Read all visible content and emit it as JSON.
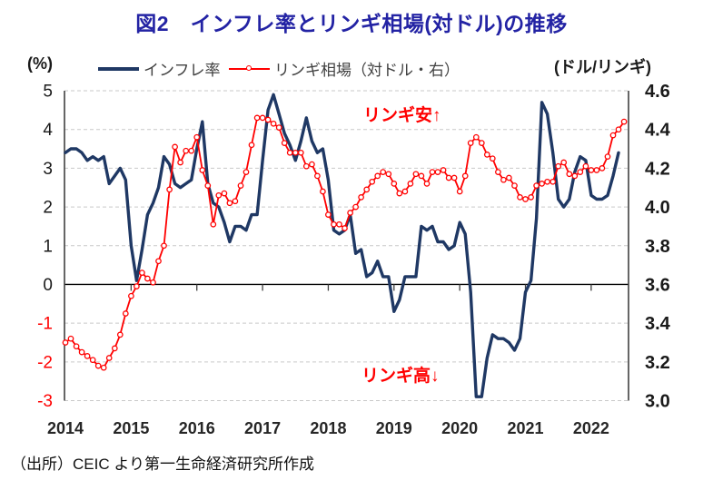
{
  "header": {
    "title": "図2　インフレ率とリンギ相場(対ドル)の推移",
    "title_color": "#2323a4"
  },
  "legend": {
    "left_unit": "(%)",
    "right_unit": "(ドル/リンギ)",
    "items": [
      {
        "label": "インフレ率",
        "color": "#1f3864",
        "marker": "line"
      },
      {
        "label": "リンギ相場（対ドル・右）",
        "color": "#ff0000",
        "marker": "line-circle"
      }
    ]
  },
  "annotations": [
    {
      "text": "リンギ安↑",
      "color": "#ff0000"
    },
    {
      "text": "リンギ高↓",
      "color": "#ff0000"
    }
  ],
  "footer": {
    "source": "（出所）CEIC より第一生命経済研究所作成"
  },
  "chart_data": {
    "type": "line",
    "title": "図2　インフレ率とリンギ相場(対ドル)の推移",
    "x_interval": "monthly",
    "x_start": "2014-01",
    "x_tick_years": [
      "2014",
      "2015",
      "2016",
      "2017",
      "2018",
      "2019",
      "2020",
      "2021",
      "2022"
    ],
    "grid": true,
    "legend_position": "top",
    "left_axis": {
      "unit": "(%)",
      "min": -3,
      "max": 5,
      "ticks": [
        5,
        4,
        3,
        2,
        1,
        0,
        -1,
        -2,
        -3
      ],
      "tick_color": "#1a1a1a",
      "negative_tick_color": "#ff0000"
    },
    "right_axis": {
      "unit": "(ドル/リンギ)",
      "min": 3.0,
      "max": 4.6,
      "ticks": [
        "4.6",
        "4.4",
        "4.2",
        "4.0",
        "3.8",
        "3.6",
        "3.4",
        "3.2",
        "3.0"
      ],
      "tick_color": "#1a1a1a"
    },
    "series": [
      {
        "name": "インフレ率",
        "axis": "left",
        "color": "#1f3864",
        "width": 3.4,
        "marker": "none",
        "values": [
          3.4,
          3.5,
          3.5,
          3.4,
          3.2,
          3.3,
          3.2,
          3.3,
          2.6,
          2.8,
          3.0,
          2.7,
          1.0,
          0.1,
          0.9,
          1.8,
          2.1,
          2.5,
          3.3,
          3.1,
          2.6,
          2.5,
          2.6,
          2.7,
          3.5,
          4.2,
          2.6,
          2.1,
          2.0,
          1.6,
          1.1,
          1.5,
          1.5,
          1.4,
          1.8,
          1.8,
          3.2,
          4.5,
          4.9,
          4.4,
          3.9,
          3.6,
          3.2,
          3.7,
          4.3,
          3.7,
          3.4,
          3.5,
          2.7,
          1.4,
          1.3,
          1.4,
          1.8,
          0.8,
          0.9,
          0.2,
          0.3,
          0.6,
          0.2,
          0.2,
          -0.7,
          -0.4,
          0.2,
          0.2,
          0.2,
          1.5,
          1.4,
          1.5,
          1.1,
          1.1,
          0.9,
          1.0,
          1.6,
          1.3,
          -0.2,
          -2.9,
          -2.9,
          -1.9,
          -1.3,
          -1.4,
          -1.4,
          -1.5,
          -1.7,
          -1.4,
          -0.2,
          0.1,
          1.7,
          4.7,
          4.4,
          3.4,
          2.2,
          2.0,
          2.2,
          2.9,
          3.3,
          3.2,
          2.3,
          2.2,
          2.2,
          2.3,
          2.8,
          3.4
        ]
      },
      {
        "name": "リンギ相場（対ドル・右）",
        "axis": "right",
        "color": "#ff0000",
        "width": 1.8,
        "marker": "circle",
        "values": [
          3.3,
          3.32,
          3.28,
          3.25,
          3.23,
          3.21,
          3.18,
          3.17,
          3.22,
          3.27,
          3.34,
          3.45,
          3.54,
          3.59,
          3.66,
          3.63,
          3.61,
          3.72,
          3.8,
          4.09,
          4.31,
          4.23,
          4.29,
          4.29,
          4.36,
          4.19,
          4.11,
          3.91,
          4.06,
          4.07,
          4.02,
          4.03,
          4.11,
          4.18,
          4.32,
          4.46,
          4.46,
          4.45,
          4.43,
          4.41,
          4.33,
          4.28,
          4.28,
          4.28,
          4.21,
          4.22,
          4.16,
          4.08,
          3.96,
          3.91,
          3.91,
          3.89,
          3.97,
          4.0,
          4.05,
          4.09,
          4.13,
          4.16,
          4.18,
          4.17,
          4.12,
          4.07,
          4.08,
          4.12,
          4.17,
          4.16,
          4.12,
          4.18,
          4.18,
          4.19,
          4.15,
          4.15,
          4.08,
          4.16,
          4.33,
          4.36,
          4.33,
          4.27,
          4.25,
          4.18,
          4.14,
          4.15,
          4.11,
          4.05,
          4.04,
          4.05,
          4.11,
          4.12,
          4.13,
          4.13,
          4.21,
          4.23,
          4.17,
          4.16,
          4.18,
          4.21,
          4.19,
          4.19,
          4.2,
          4.26,
          4.37,
          4.4,
          4.44
        ]
      }
    ]
  }
}
